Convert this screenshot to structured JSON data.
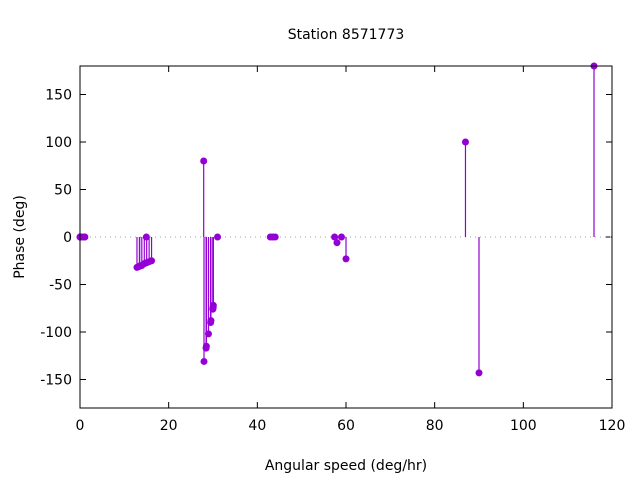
{
  "chart_data": {
    "type": "impulse-scatter",
    "title": "Station 8571773",
    "xlabel": "Angular speed (deg/hr)",
    "ylabel": "Phase (deg)",
    "xlim": [
      0,
      120
    ],
    "ylim": [
      -180,
      180
    ],
    "xticks": [
      0,
      20,
      40,
      60,
      80,
      100,
      120
    ],
    "yticks": [
      -150,
      -100,
      -50,
      0,
      50,
      100,
      150
    ],
    "grid": false,
    "zero_line": "dotted",
    "color": "#9400d3",
    "points": [
      {
        "x": 0.0,
        "y": 0
      },
      {
        "x": 0.04,
        "y": 0
      },
      {
        "x": 0.08,
        "y": 0
      },
      {
        "x": 0.54,
        "y": 0
      },
      {
        "x": 1.02,
        "y": 0
      },
      {
        "x": 1.1,
        "y": 0
      },
      {
        "x": 12.85,
        "y": -32
      },
      {
        "x": 13.4,
        "y": -31
      },
      {
        "x": 13.47,
        "y": -30.5
      },
      {
        "x": 13.94,
        "y": -30
      },
      {
        "x": 14.5,
        "y": -28
      },
      {
        "x": 14.96,
        "y": 0
      },
      {
        "x": 15.04,
        "y": -27
      },
      {
        "x": 15.59,
        "y": -26
      },
      {
        "x": 16.14,
        "y": -25
      },
      {
        "x": 27.9,
        "y": 80
      },
      {
        "x": 27.97,
        "y": -131
      },
      {
        "x": 28.44,
        "y": -117
      },
      {
        "x": 28.51,
        "y": -115
      },
      {
        "x": 28.98,
        "y": -102
      },
      {
        "x": 29.46,
        "y": -90
      },
      {
        "x": 29.53,
        "y": -88
      },
      {
        "x": 29.96,
        "y": -76
      },
      {
        "x": 30.0,
        "y": -75
      },
      {
        "x": 30.04,
        "y": -74
      },
      {
        "x": 30.08,
        "y": -72
      },
      {
        "x": 31.02,
        "y": 0
      },
      {
        "x": 42.93,
        "y": 0
      },
      {
        "x": 43.48,
        "y": 0
      },
      {
        "x": 44.03,
        "y": 0
      },
      {
        "x": 57.42,
        "y": 0
      },
      {
        "x": 57.97,
        "y": -6
      },
      {
        "x": 58.98,
        "y": 0
      },
      {
        "x": 60.0,
        "y": -23
      },
      {
        "x": 86.95,
        "y": 100
      },
      {
        "x": 90.0,
        "y": -143
      },
      {
        "x": 115.94,
        "y": 180
      }
    ]
  }
}
